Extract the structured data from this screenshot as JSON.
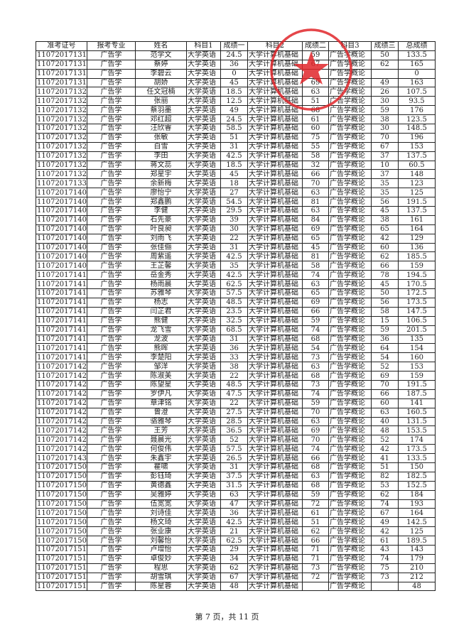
{
  "columns": [
    "准考证号",
    "报考专业",
    "姓名",
    "科目1",
    "成绩一",
    "科目2",
    "成绩二",
    "科目3",
    "成绩三",
    "总成绩"
  ],
  "rows": [
    [
      "110720171316",
      "广告学",
      "范学文",
      "大学英语",
      "24.5",
      "大学计算机基础",
      "59",
      "广告学概论",
      "50",
      "133.5"
    ],
    [
      "110720171317",
      "广告学",
      "蔡婷",
      "大学英语",
      "36",
      "大学计算机基础",
      "67",
      "广告学概论",
      "62",
      "165"
    ],
    [
      "110720171318",
      "广告学",
      "李碧云",
      "大学英语",
      "0",
      "大学计算机基础",
      "",
      "广告学概论",
      "",
      "0"
    ],
    [
      "110720171319",
      "广告学",
      "胡娇",
      "大学英语",
      "45",
      "大学计算机基础",
      "69",
      "广告学概论",
      "49",
      "163"
    ],
    [
      "110720171320",
      "广告学",
      "任文冠楠",
      "大学英语",
      "18.5",
      "大学计算机基础",
      "63",
      "广告学概论",
      "26",
      "107.5"
    ],
    [
      "110720171321",
      "广告学",
      "张丽",
      "大学英语",
      "12.5",
      "大学计算机基础",
      "51",
      "广告学概论",
      "30",
      "93.5"
    ],
    [
      "110720171322",
      "广告学",
      "蔡羽墨",
      "大学英语",
      "49",
      "大学计算机基础",
      "68",
      "广告学概论",
      "59",
      "176"
    ],
    [
      "110720171323",
      "广告学",
      "邓红超",
      "大学英语",
      "24.5",
      "大学计算机基础",
      "61",
      "广告学概论",
      "38",
      "123.5"
    ],
    [
      "110720171324",
      "广告学",
      "汪欣睿",
      "大学英语",
      "58.5",
      "大学计算机基础",
      "60",
      "广告学概论",
      "30",
      "148.5"
    ],
    [
      "110720171325",
      "广告学",
      "张敏",
      "大学英语",
      "51",
      "大学计算机基础",
      "75",
      "广告学概论",
      "70",
      "196"
    ],
    [
      "110720171326",
      "广告学",
      "白雪",
      "大学英语",
      "31",
      "大学计算机基础",
      "55",
      "广告学概论",
      "67",
      "153"
    ],
    [
      "110720171327",
      "广告学",
      "李田",
      "大学英语",
      "42.5",
      "大学计算机基础",
      "58",
      "广告学概论",
      "37",
      "137.5"
    ],
    [
      "110720171328",
      "广告学",
      "蒋文蕊",
      "大学英语",
      "18.5",
      "大学计算机基础",
      "32",
      "广告学概论",
      "10",
      "60.5"
    ],
    [
      "110720171329",
      "广告学",
      "郑星宇",
      "大学英语",
      "45",
      "大学计算机基础",
      "66",
      "广告学概论",
      "37",
      "148"
    ],
    [
      "110720171330",
      "广告学",
      "余新梅",
      "大学英语",
      "18",
      "大学计算机基础",
      "70",
      "广告学概论",
      "35",
      "123"
    ],
    [
      "110720171401",
      "广告学",
      "廖怡宁",
      "大学英语",
      "27",
      "大学计算机基础",
      "63",
      "广告学概论",
      "35",
      "125"
    ],
    [
      "110720171402",
      "广告学",
      "郑鑫鹏",
      "大学英语",
      "54.5",
      "大学计算机基础",
      "81",
      "广告学概论",
      "56",
      "191.5"
    ],
    [
      "110720171403",
      "广告学",
      "李健",
      "大学英语",
      "29.5",
      "大学计算机基础",
      "63",
      "广告学概论",
      "45",
      "137.5"
    ],
    [
      "110720171404",
      "广告学",
      "石先豪",
      "大学英语",
      "39",
      "大学计算机基础",
      "84",
      "广告学概论",
      "38",
      "161"
    ],
    [
      "110720171405",
      "广告学",
      "叶良昶",
      "大学英语",
      "30",
      "大学计算机基础",
      "69",
      "广告学概论",
      "65",
      "164"
    ],
    [
      "110720171406",
      "广告学",
      "刘雨飞",
      "大学英语",
      "22",
      "大学计算机基础",
      "65",
      "广告学概论",
      "42",
      "129"
    ],
    [
      "110720171407",
      "广告学",
      "张佳俪",
      "大学英语",
      "31",
      "大学计算机基础",
      "45",
      "广告学概论",
      "60",
      "136"
    ],
    [
      "110720171408",
      "广告学",
      "周紫遥",
      "大学英语",
      "42.5",
      "大学计算机基础",
      "81",
      "广告学概论",
      "62",
      "185.5"
    ],
    [
      "110720171409",
      "广告学",
      "王芷馨",
      "大学英语",
      "35",
      "大学计算机基础",
      "58",
      "广告学概论",
      "66",
      "159"
    ],
    [
      "110720171410",
      "广告学",
      "岳金秀",
      "大学英语",
      "42.5",
      "大学计算机基础",
      "74",
      "广告学概论",
      "78",
      "194.5"
    ],
    [
      "110720171411",
      "广告学",
      "杨雨晨",
      "大学英语",
      "62.5",
      "大学计算机基础",
      "63",
      "广告学概论",
      "45",
      "170.5"
    ],
    [
      "110720171412",
      "广告学",
      "苏雅琴",
      "大学英语",
      "57.5",
      "大学计算机基础",
      "65",
      "广告学概论",
      "50",
      "172.5"
    ],
    [
      "110720171413",
      "广告学",
      "杨志",
      "大学英语",
      "48.5",
      "大学计算机基础",
      "69",
      "广告学概论",
      "56",
      "173.5"
    ],
    [
      "110720171414",
      "广告学",
      "闫芷君",
      "大学英语",
      "23.5",
      "大学计算机基础",
      "66",
      "广告学概论",
      "58",
      "147.5"
    ],
    [
      "110720171415",
      "广告学",
      "熊健",
      "大学英语",
      "32.5",
      "大学计算机基础",
      "59",
      "广告学概论",
      "15",
      "106.5"
    ],
    [
      "110720171416",
      "广告学",
      "龙飞雪",
      "大学英语",
      "68.5",
      "大学计算机基础",
      "74",
      "广告学概论",
      "59",
      "201.5"
    ],
    [
      "110720171417",
      "广告学",
      "龙波",
      "大学英语",
      "31",
      "大学计算机基础",
      "68",
      "广告学概论",
      "36",
      "135"
    ],
    [
      "110720171418",
      "广告学",
      "熊晖",
      "大学英语",
      "36",
      "大学计算机基础",
      "54",
      "广告学概论",
      "64",
      "154"
    ],
    [
      "110720171419",
      "广告学",
      "李楚阳",
      "大学英语",
      "33",
      "大学计算机基础",
      "73",
      "广告学概论",
      "54",
      "160"
    ],
    [
      "110720171420",
      "广告学",
      "邹洋",
      "大学英语",
      "38",
      "大学计算机基础",
      "63",
      "广告学概论",
      "52",
      "153"
    ],
    [
      "110720171421",
      "广告学",
      "陈淑美",
      "大学英语",
      "22",
      "大学计算机基础",
      "68",
      "广告学概论",
      "69",
      "159"
    ],
    [
      "110720171422",
      "广告学",
      "陈望星",
      "大学英语",
      "48.5",
      "大学计算机基础",
      "73",
      "广告学概论",
      "70",
      "191.5"
    ],
    [
      "110720171423",
      "广告学",
      "罗伊凡",
      "大学英语",
      "47.5",
      "大学计算机基础",
      "74",
      "广告学概论",
      "66",
      "187.5"
    ],
    [
      "110720171424",
      "广告学",
      "章津铭",
      "大学英语",
      "22",
      "大学计算机基础",
      "59",
      "广告学概论",
      "60",
      "141"
    ],
    [
      "110720171425",
      "广告学",
      "曾澄",
      "大学英语",
      "27.5",
      "大学计算机基础",
      "70",
      "广告学概论",
      "63",
      "160.5"
    ],
    [
      "110720171426",
      "广告学",
      "骆雅琴",
      "大学英语",
      "28.5",
      "大学计算机基础",
      "63",
      "广告学概论",
      "40",
      "131.5"
    ],
    [
      "110720171427",
      "广告学",
      "王芳",
      "大学英语",
      "36.5",
      "大学计算机基础",
      "69",
      "广告学概论",
      "48",
      "153.5"
    ],
    [
      "110720171428",
      "广告学",
      "聂晨光",
      "大学英语",
      "52",
      "大学计算机基础",
      "70",
      "广告学概论",
      "52",
      "174"
    ],
    [
      "110720171429",
      "广告学",
      "何俊伟",
      "大学英语",
      "57.5",
      "大学计算机基础",
      "74",
      "广告学概论",
      "42",
      "173.5"
    ],
    [
      "110720171430",
      "广告学",
      "朱鑫宇",
      "大学英语",
      "26.5",
      "大学计算机基础",
      "66",
      "广告学概论",
      "41",
      "133.5"
    ],
    [
      "110720171501",
      "广告学",
      "瞿啸",
      "大学英语",
      "31",
      "大学计算机基础",
      "68",
      "广告学概论",
      "51",
      "150"
    ],
    [
      "110720171502",
      "广告学",
      "彭钰琦",
      "大学英语",
      "37.5",
      "大学计算机基础",
      "63",
      "广告学概论",
      "82",
      "182.5"
    ],
    [
      "110720171503",
      "广告学",
      "黄德鑫",
      "大学英语",
      "31.5",
      "大学计算机基础",
      "68",
      "广告学概论",
      "53",
      "152.5"
    ],
    [
      "110720171504",
      "广告学",
      "吴雅婷",
      "大学英语",
      "63",
      "大学计算机基础",
      "59",
      "广告学概论",
      "62",
      "184"
    ],
    [
      "110720171505",
      "广告学",
      "伍宽宽",
      "大学英语",
      "47",
      "大学计算机基础",
      "72",
      "广告学概论",
      "74",
      "193"
    ],
    [
      "110720171506",
      "广告学",
      "刘诗佳",
      "大学英语",
      "36",
      "大学计算机基础",
      "61",
      "广告学概论",
      "67",
      "164"
    ],
    [
      "110720171507",
      "广告学",
      "杨文琦",
      "大学英语",
      "42.5",
      "大学计算机基础",
      "51",
      "广告学概论",
      "49",
      "142.5"
    ],
    [
      "110720171508",
      "广告学",
      "张业康",
      "大学英语",
      "21",
      "大学计算机基础",
      "62",
      "广告学概论",
      "42",
      "125"
    ],
    [
      "110720171509",
      "广告学",
      "刘馨怡",
      "大学英语",
      "62.5",
      "大学计算机基础",
      "66",
      "广告学概论",
      "61",
      "189.5"
    ],
    [
      "110720171510",
      "广告学",
      "卢增怡",
      "大学英语",
      "29",
      "大学计算机基础",
      "71",
      "广告学概论",
      "43",
      "143"
    ],
    [
      "110720171511",
      "广告学",
      "卓俊妙",
      "大学英语",
      "34",
      "大学计算机基础",
      "71",
      "广告学概论",
      "74",
      "179"
    ],
    [
      "110720171512",
      "广告学",
      "程思",
      "大学英语",
      "62",
      "大学计算机基础",
      "73",
      "广告学概论",
      "75",
      "210"
    ],
    [
      "110720171513",
      "广告学",
      "胡雪琪",
      "大学英语",
      "67",
      "大学计算机基础",
      "72",
      "广告学概论",
      "73",
      "212"
    ],
    [
      "110720171514",
      "广告学",
      "陈星蓉",
      "大学英语",
      "48",
      "大学计算机基础",
      "",
      "广告学概论",
      "",
      "48"
    ]
  ],
  "footer": "第 7 页，共 11 页",
  "stamp": {
    "text": "教务处",
    "color": "#e0262a"
  }
}
